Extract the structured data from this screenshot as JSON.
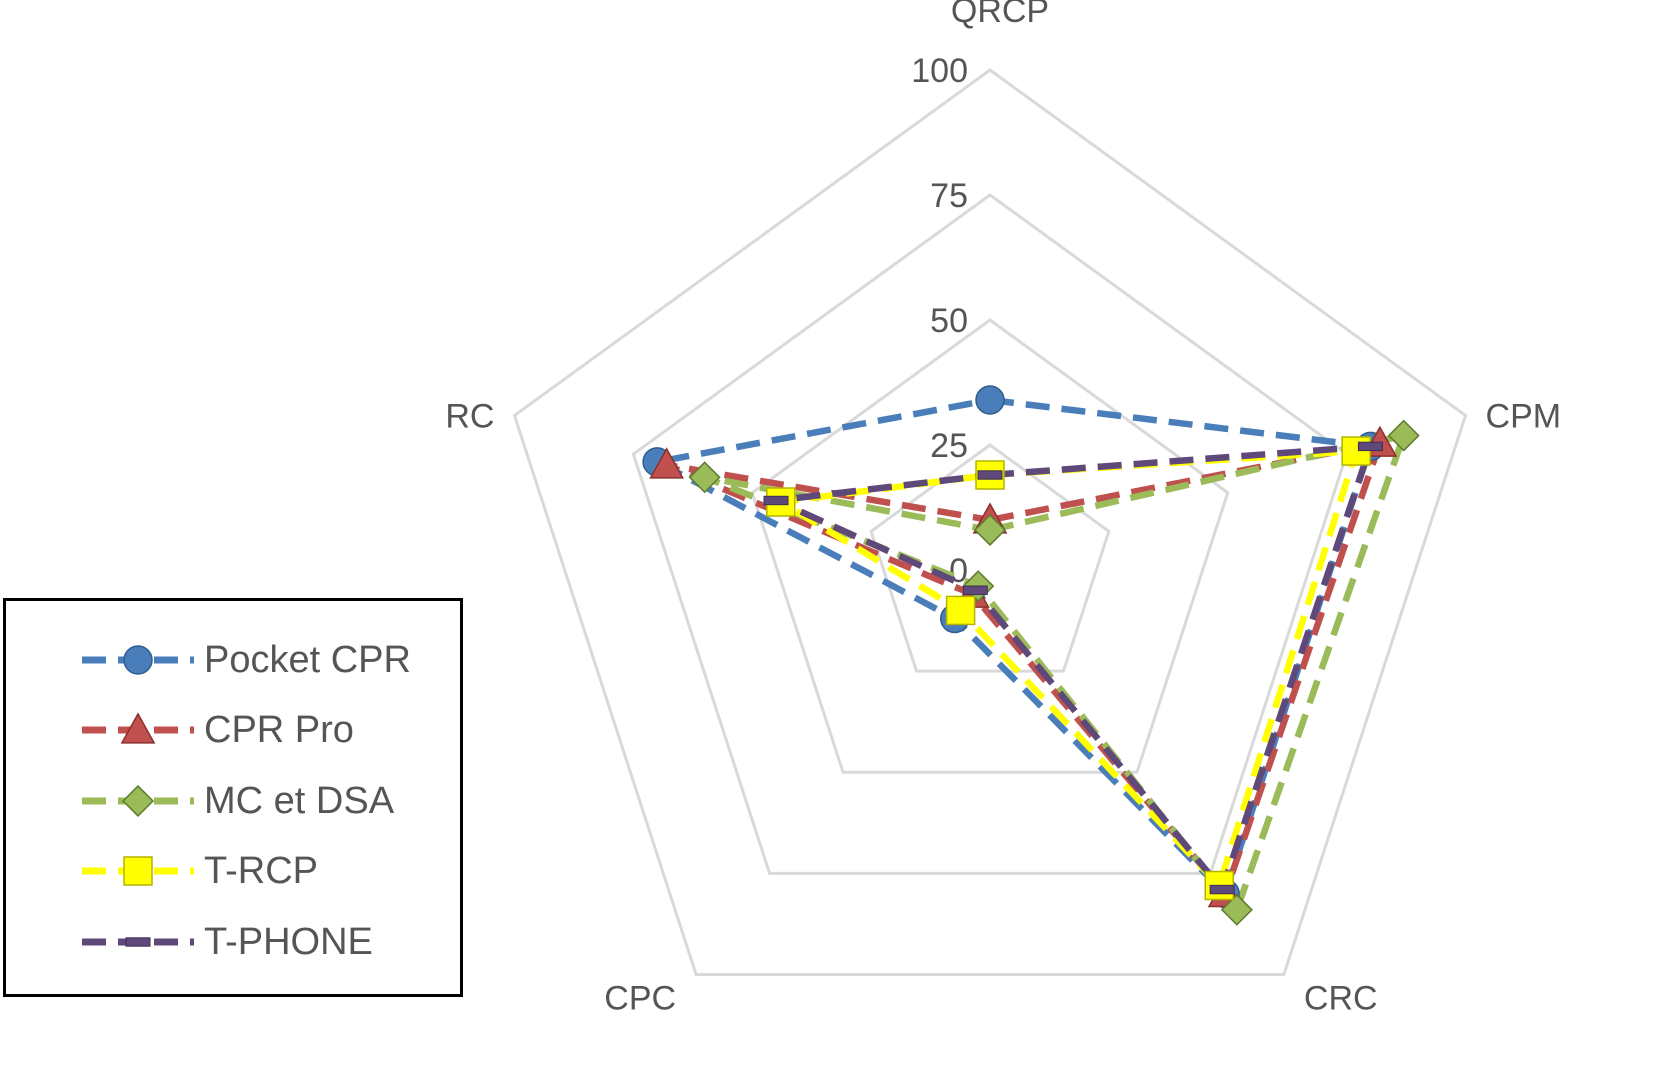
{
  "chart_data": {
    "type": "radar",
    "axes": [
      "QRCP",
      "CPM",
      "CRC",
      "CPC",
      "RC"
    ],
    "rmin": 0,
    "rmax": 100,
    "ticks": [
      "0",
      "25",
      "50",
      "75",
      "100"
    ],
    "series": [
      {
        "name": "Pocket CPR",
        "values": [
          34,
          80,
          80,
          12,
          70
        ],
        "color": "#4a7ebb",
        "marker": "circle"
      },
      {
        "name": "CPR Pro",
        "values": [
          10,
          82,
          80,
          6,
          68
        ],
        "color": "#c0504d",
        "marker": "triangle"
      },
      {
        "name": "MC et DSA",
        "values": [
          8,
          87,
          84,
          4,
          60
        ],
        "color": "#9bbb59",
        "marker": "diamond"
      },
      {
        "name": "T-RCP",
        "values": [
          19,
          77,
          78,
          10,
          44
        ],
        "color": "#ffff00",
        "marker": "square"
      },
      {
        "name": "T-PHONE",
        "values": [
          19,
          80,
          79,
          5,
          45
        ],
        "color": "#5f497a",
        "marker": "bar"
      }
    ],
    "legend": "left"
  }
}
